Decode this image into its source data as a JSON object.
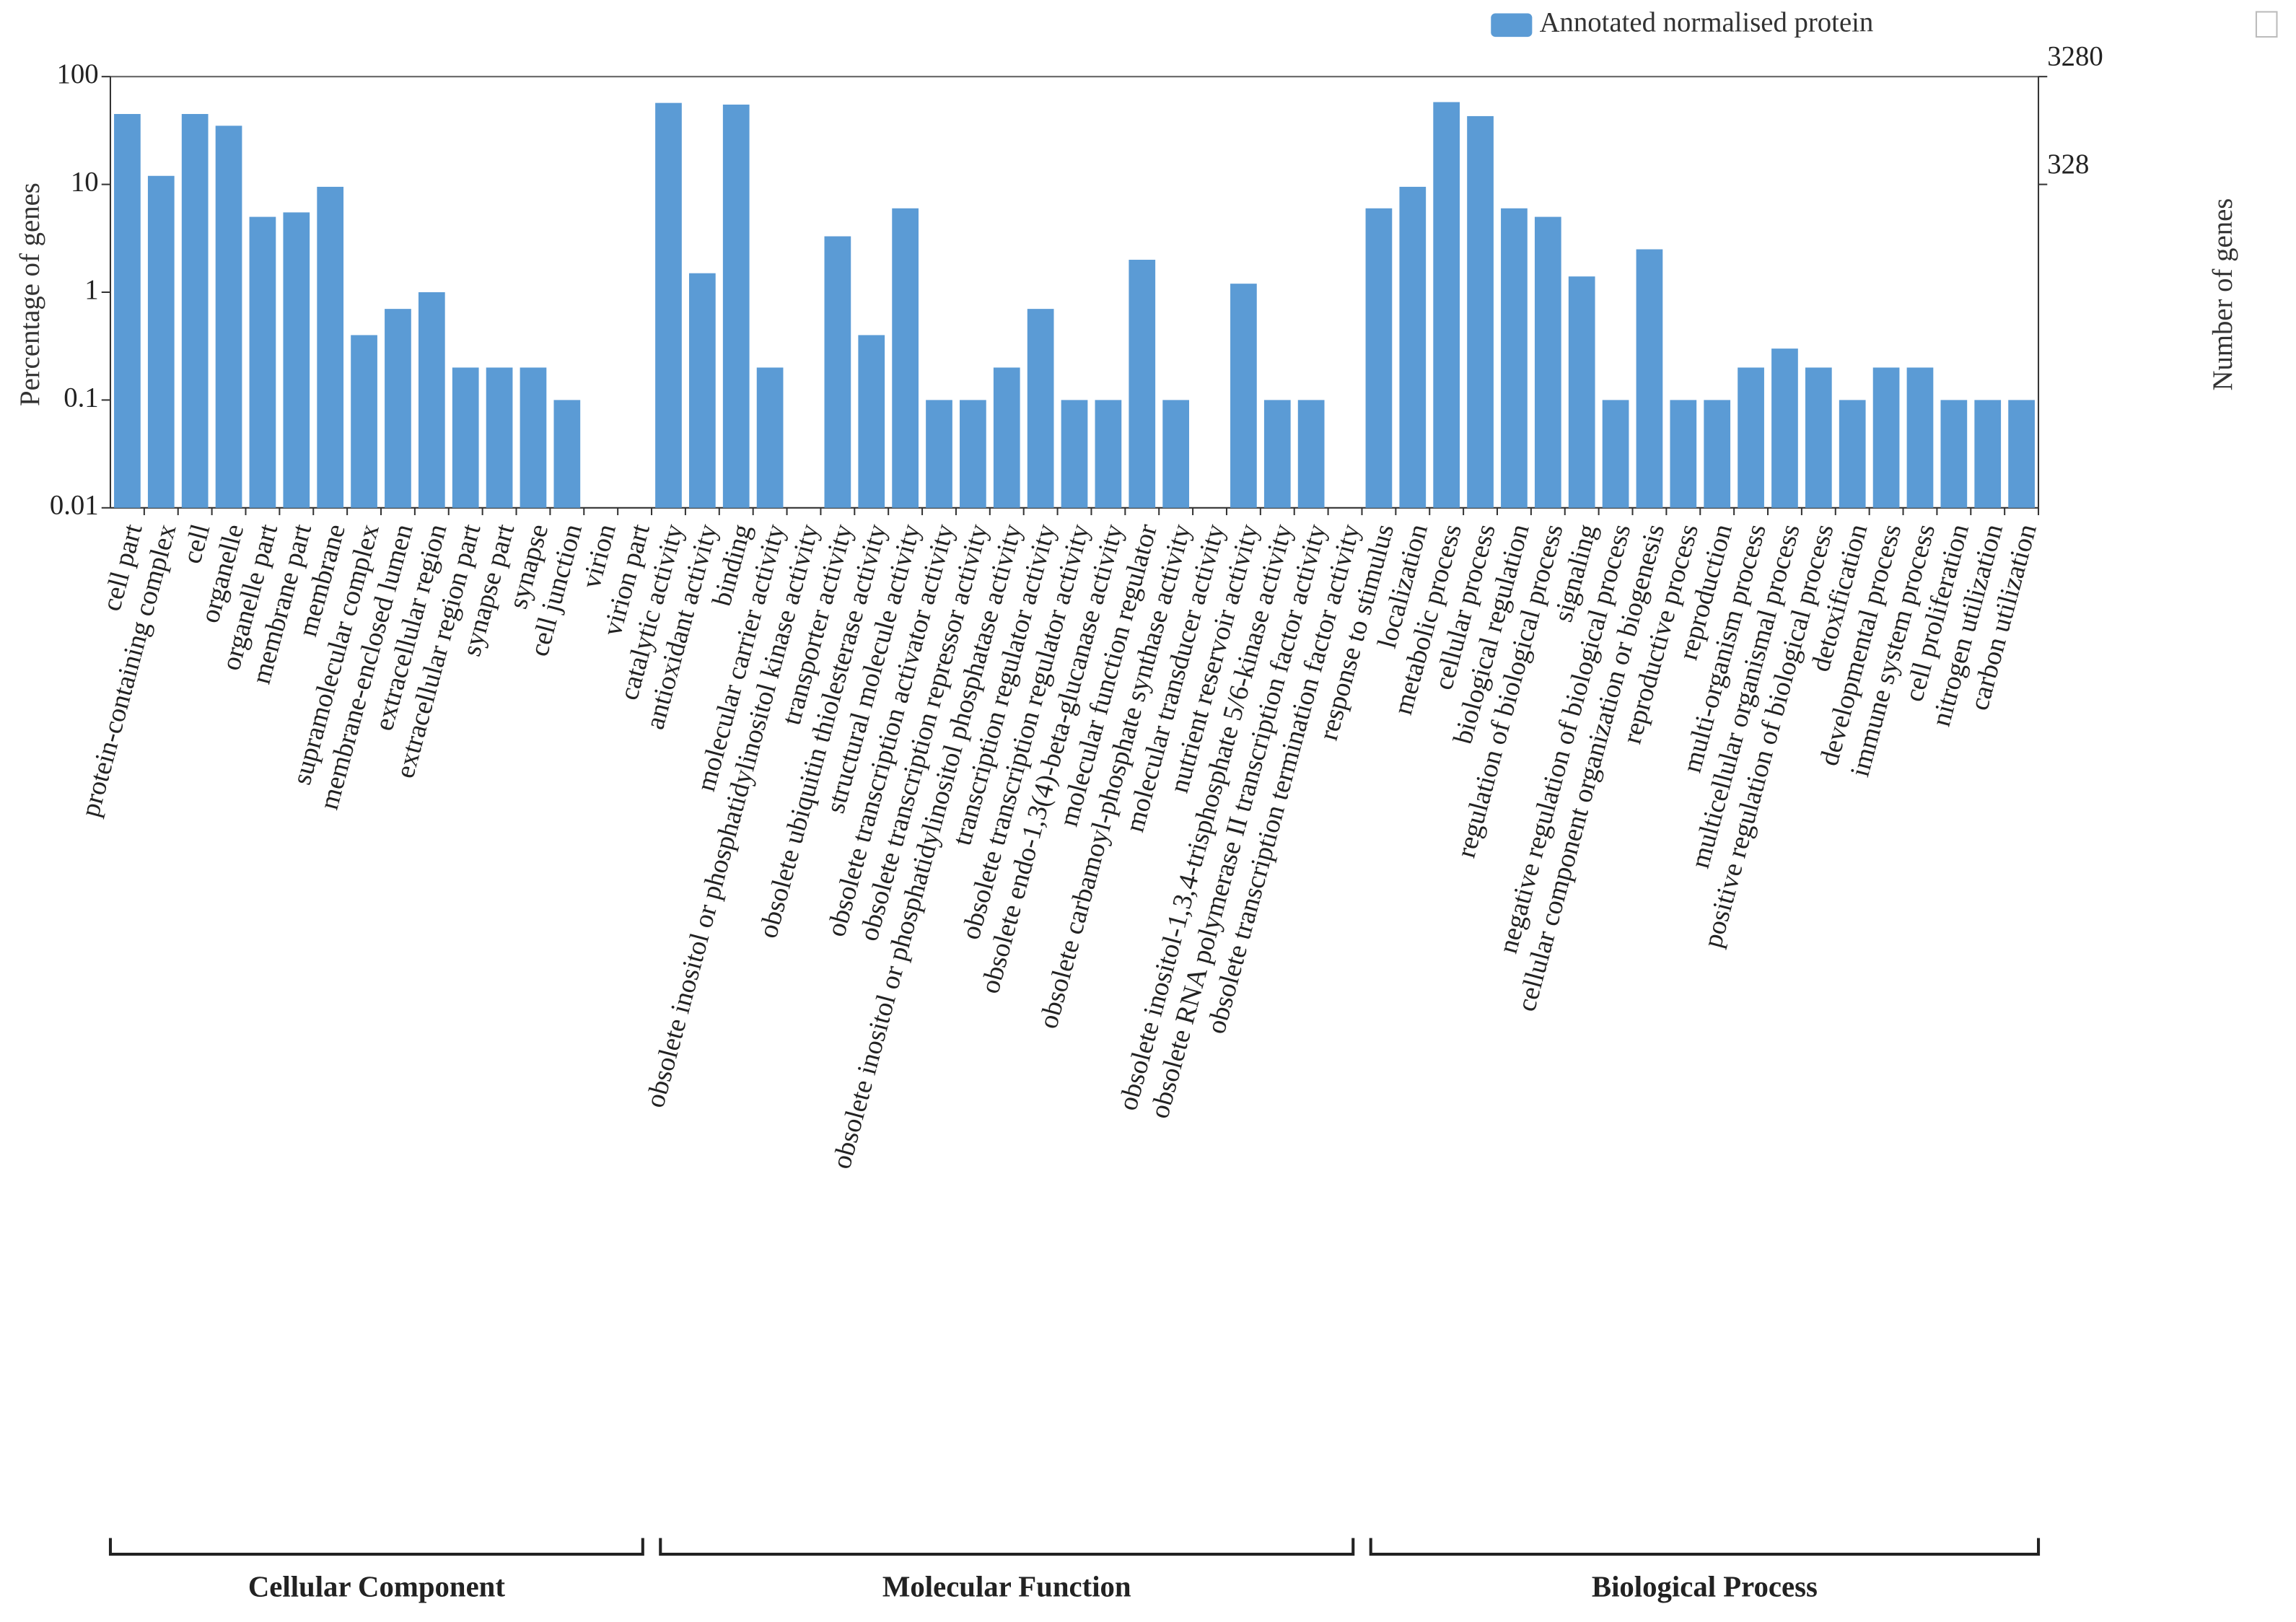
{
  "chart_data": {
    "type": "bar",
    "log_scale": true,
    "y_label": "Percentage of genes",
    "y2_label": "Number of genes",
    "ylim": [
      0.01,
      100
    ],
    "yticks": [
      0.01,
      0.1,
      1,
      10,
      100
    ],
    "y2lim": [
      0.328,
      3280
    ],
    "y2ticks": [
      328,
      3280
    ],
    "legend": {
      "name": "Annotated normalised protein",
      "color": "#5b9bd5",
      "position": "top-right"
    },
    "groups": [
      {
        "name": "Cellular Component",
        "categories": [
          "cell part",
          "protein-containing complex",
          "cell",
          "organelle",
          "organelle part",
          "membrane part",
          "membrane",
          "supramolecular complex",
          "membrane-enclosed lumen",
          "extracellular region",
          "extracellular region part",
          "synapse part",
          "synapse",
          "cell junction",
          "virion",
          "virion part"
        ],
        "values": [
          45,
          12,
          45,
          35,
          5,
          5.5,
          9.5,
          0.4,
          0.7,
          1,
          0.2,
          0.2,
          0.2,
          0.1,
          null,
          null
        ]
      },
      {
        "name": "Molecular Function",
        "categories": [
          "catalytic activity",
          "antioxidant activity",
          "binding",
          "molecular carrier activity",
          "obsolete inositol or phosphatidylinositol kinase activity",
          "transporter activity",
          "obsolete ubiquitin thiolesterase activity",
          "structural molecule activity",
          "obsolete transcription activator activity",
          "obsolete transcription repressor activity",
          "obsolete inositol or phosphatidylinositol phosphatase activity",
          "transcription regulator activity",
          "obsolete transcription regulator activity",
          "obsolete endo-1,3(4)-beta-glucanase activity",
          "molecular function regulator",
          "obsolete carbamoyl-phosphate synthase activity",
          "molecular transducer activity",
          "nutrient reservoir activity",
          "obsolete inositol-1,3,4-trisphosphate 5/6-kinase activity",
          "obsolete RNA polymerase II transcription factor activity",
          "obsolete transcription termination factor activity"
        ],
        "values": [
          57,
          1.5,
          55,
          0.2,
          null,
          3.3,
          0.4,
          6,
          0.1,
          0.1,
          0.2,
          0.7,
          0.1,
          0.1,
          2,
          0.1,
          null,
          1.2,
          0.1,
          0.1,
          null
        ]
      },
      {
        "name": "Biological Process",
        "categories": [
          "response to stimulus",
          "localization",
          "metabolic process",
          "cellular process",
          "biological regulation",
          "regulation of biological process",
          "signaling",
          "negative regulation of biological process",
          "cellular component organization or biogenesis",
          "reproductive process",
          "reproduction",
          "multi-organism process",
          "multicellular organismal process",
          "positive regulation of biological process",
          "detoxification",
          "developmental process",
          "immune system process",
          "cell proliferation",
          "nitrogen utilization",
          "carbon utilization"
        ],
        "values": [
          6,
          9.5,
          58,
          43,
          6,
          5,
          1.4,
          0.1,
          2.5,
          0.1,
          0.1,
          0.2,
          0.3,
          0.2,
          0.1,
          0.2,
          0.2,
          0.1,
          0.1,
          0.1
        ]
      }
    ]
  }
}
